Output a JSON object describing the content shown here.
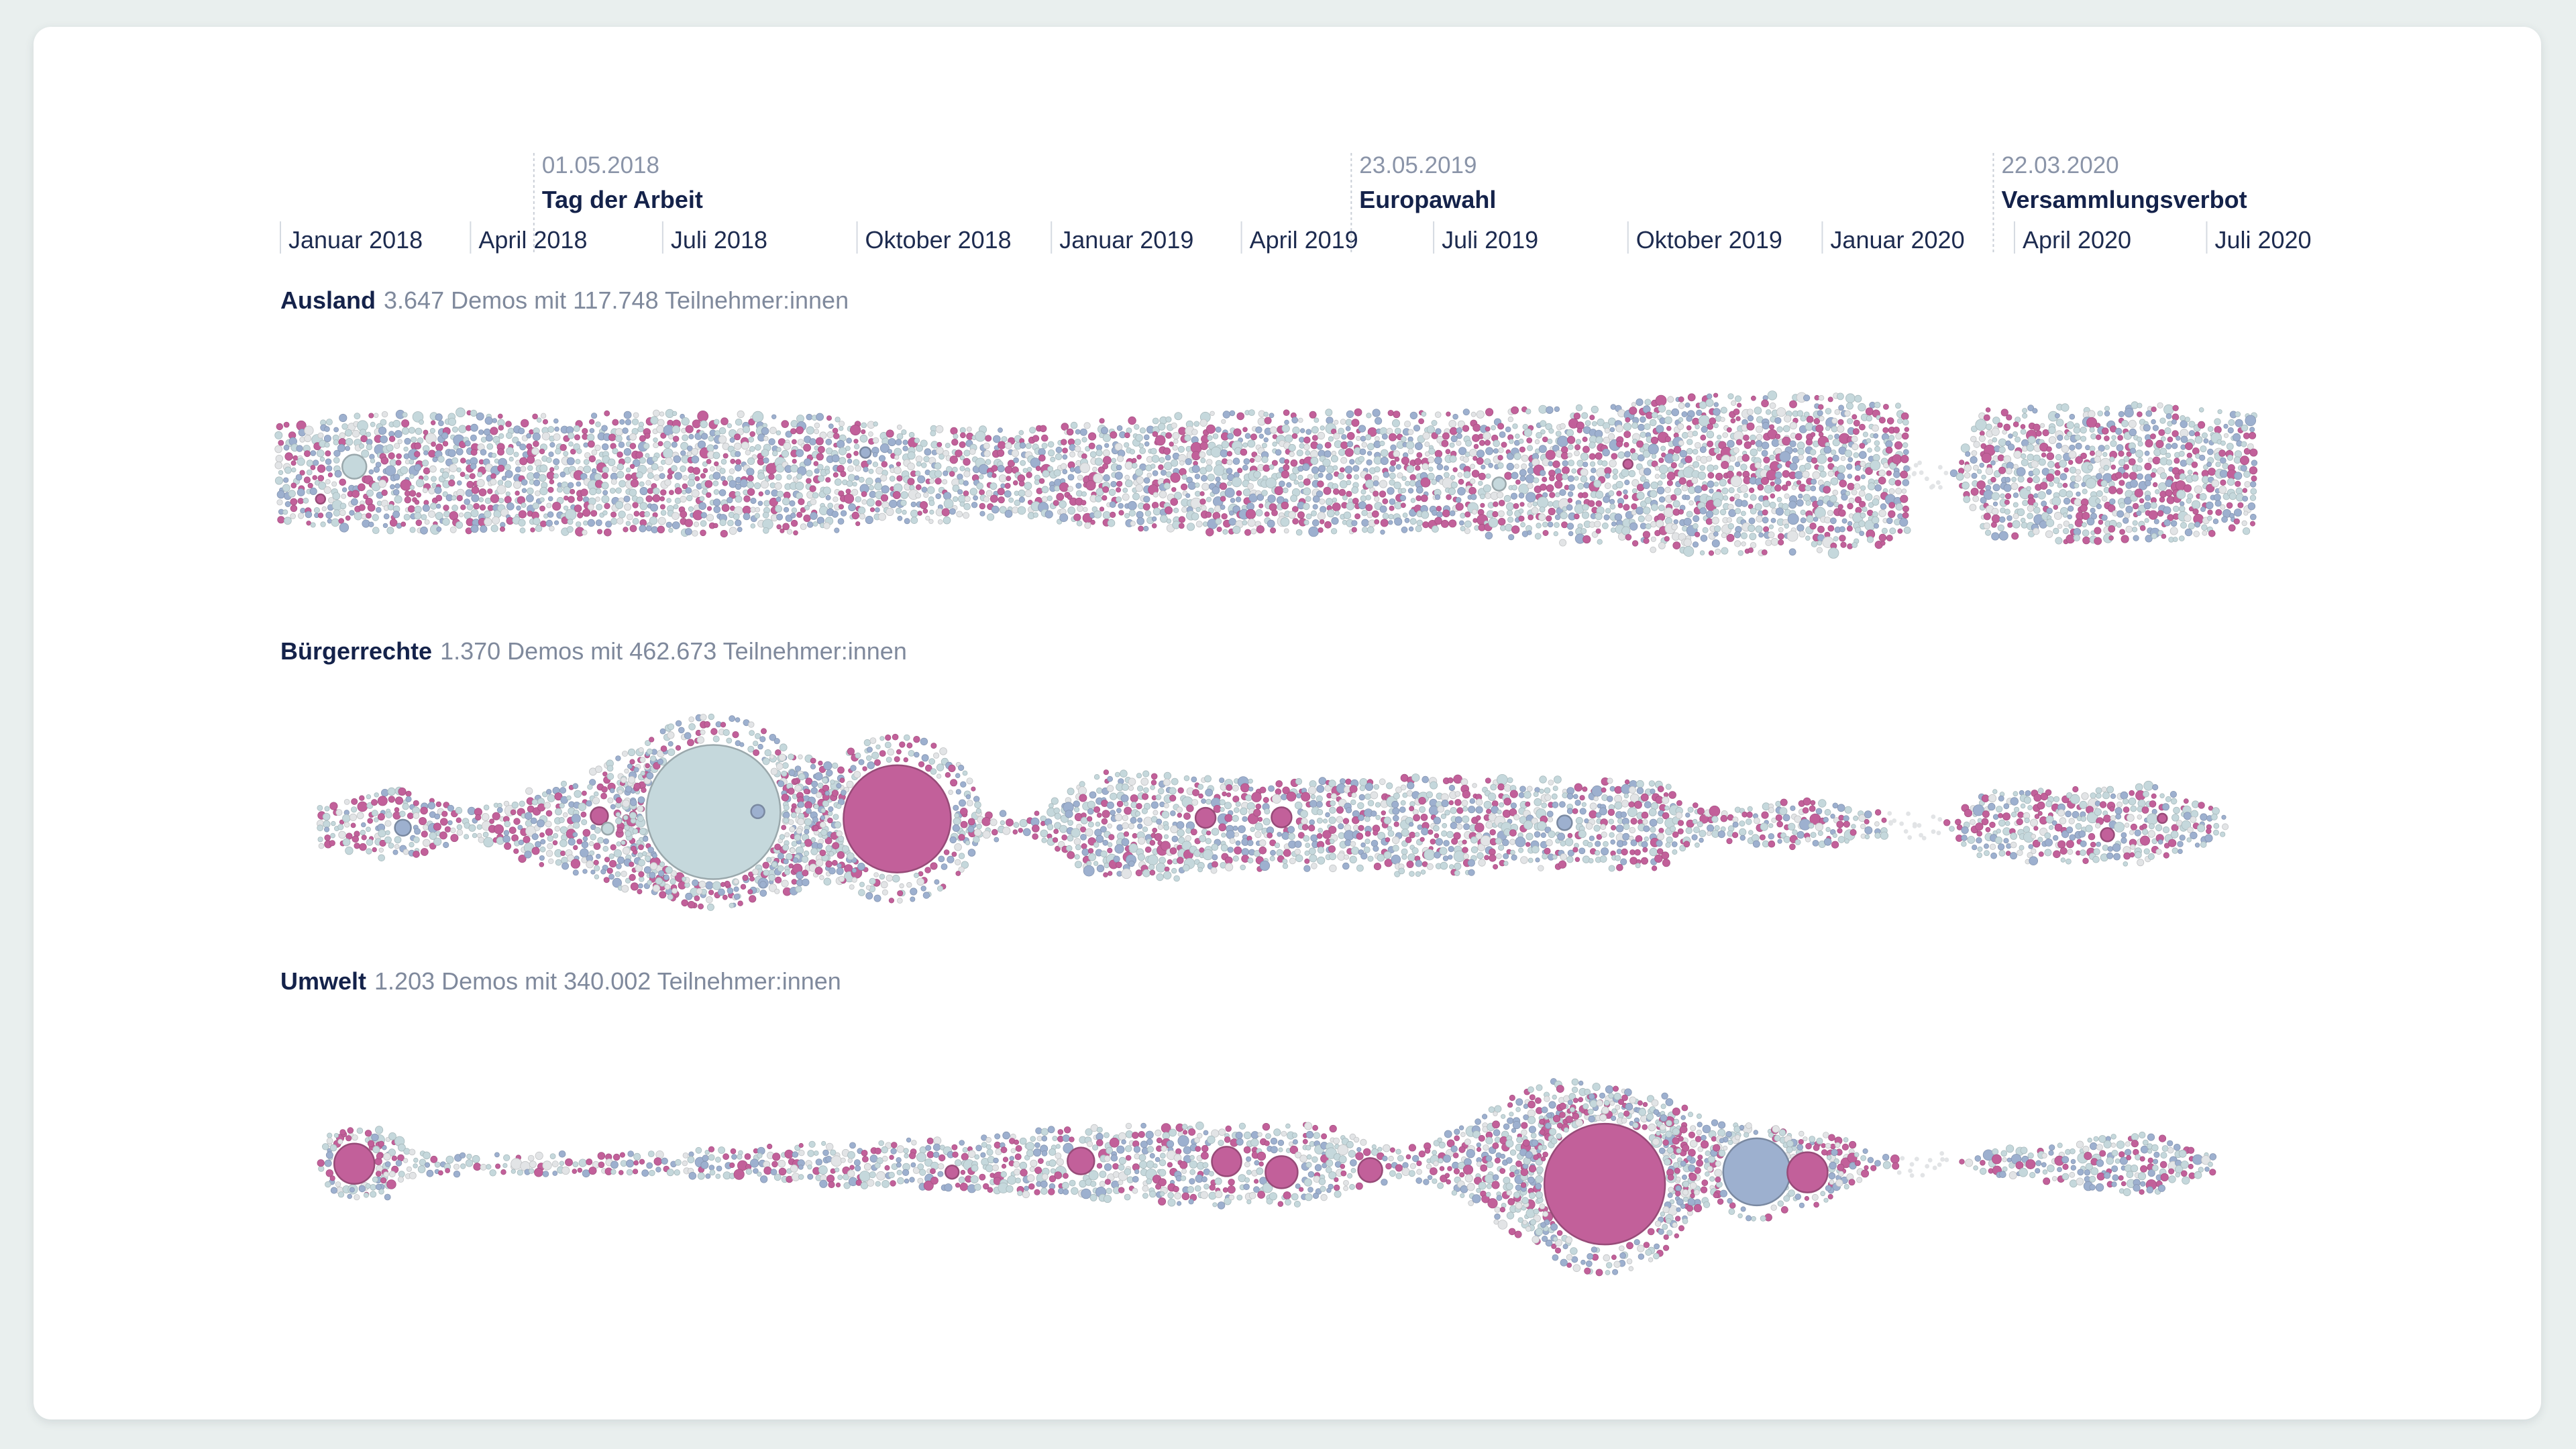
{
  "colors": {
    "magenta": "#c2609a",
    "steel_blue": "#9db0cf",
    "pale_teal": "#c5d8dc",
    "light_gray": "#e2e4e6",
    "label_dark": "#14224a",
    "label_muted": "#8a94a8",
    "background": "#e9efee",
    "card": "#ffffff"
  },
  "chart_data": {
    "type": "scatter",
    "subtype": "beeswarm",
    "x_axis": {
      "type": "date",
      "range": [
        "2018-01-01",
        "2020-09-30"
      ],
      "ticks": [
        {
          "date": "2018-01-01",
          "label": "Januar 2018"
        },
        {
          "date": "2018-04-01",
          "label": "April 2018"
        },
        {
          "date": "2018-07-01",
          "label": "Juli 2018"
        },
        {
          "date": "2018-10-01",
          "label": "Oktober 2018"
        },
        {
          "date": "2019-01-01",
          "label": "Januar 2019"
        },
        {
          "date": "2019-04-01",
          "label": "April 2019"
        },
        {
          "date": "2019-07-01",
          "label": "Juli 2019"
        },
        {
          "date": "2019-10-01",
          "label": "Oktober 2019"
        },
        {
          "date": "2020-01-01",
          "label": "Januar 2020"
        },
        {
          "date": "2020-04-01",
          "label": "April 2020"
        },
        {
          "date": "2020-07-01",
          "label": "Juli 2020"
        }
      ]
    },
    "events": [
      {
        "date": "2018-05-01",
        "date_label": "01.05.2018",
        "name": "Tag der Arbeit"
      },
      {
        "date": "2019-05-23",
        "date_label": "23.05.2019",
        "name": "Europawahl"
      },
      {
        "date": "2020-03-22",
        "date_label": "22.03.2020",
        "name": "Versammlungsverbot"
      }
    ],
    "series": [
      {
        "name": "Ausland",
        "stats": "3.647 Demos mit 117.748 Teilnehmer:innen",
        "gap": [
          "2020-02-10",
          "2020-03-01"
        ],
        "density": [
          [
            "2018-01-01",
            0.5
          ],
          [
            "2018-02-15",
            0.6
          ],
          [
            "2018-04-01",
            0.62
          ],
          [
            "2018-06-15",
            0.62
          ],
          [
            "2018-09-01",
            0.6
          ],
          [
            "2018-10-15",
            0.5
          ],
          [
            "2018-12-15",
            0.45
          ],
          [
            "2019-02-01",
            0.55
          ],
          [
            "2019-04-01",
            0.62
          ],
          [
            "2019-07-01",
            0.62
          ],
          [
            "2019-09-15",
            0.68
          ],
          [
            "2019-11-01",
            0.8
          ],
          [
            "2020-01-01",
            0.8
          ],
          [
            "2020-02-10",
            0.7
          ],
          [
            "2020-03-01",
            0.0
          ],
          [
            "2020-03-20",
            0.66
          ],
          [
            "2020-06-01",
            0.7
          ],
          [
            "2020-07-25",
            0.62
          ]
        ],
        "highlights": [
          {
            "date": "2018-02-05",
            "size": 18,
            "color": "pale_teal"
          },
          {
            "date": "2018-01-20",
            "size": 7,
            "color": "magenta"
          },
          {
            "date": "2018-10-05",
            "size": 8,
            "color": "steel_blue"
          },
          {
            "date": "2019-08-01",
            "size": 10,
            "color": "pale_teal"
          },
          {
            "date": "2019-10-01",
            "size": 7,
            "color": "magenta"
          }
        ]
      },
      {
        "name": "Bürgerrechte",
        "stats": "1.370 Demos mit 462.673 Teilnehmer:innen",
        "gap": [
          "2020-02-01",
          "2020-02-25"
        ],
        "density": [
          [
            "2018-01-20",
            0.2
          ],
          [
            "2018-03-01",
            0.35
          ],
          [
            "2018-04-01",
            0.15
          ],
          [
            "2018-05-15",
            0.45
          ],
          [
            "2018-06-20",
            0.75
          ],
          [
            "2018-09-01",
            0.7
          ],
          [
            "2018-11-01",
            0.25
          ],
          [
            "2018-12-15",
            0.1
          ],
          [
            "2019-02-01",
            0.55
          ],
          [
            "2019-04-15",
            0.45
          ],
          [
            "2019-07-01",
            0.48
          ],
          [
            "2019-10-15",
            0.45
          ],
          [
            "2019-11-10",
            0.15
          ],
          [
            "2019-12-20",
            0.25
          ],
          [
            "2020-02-01",
            0.12
          ],
          [
            "2020-02-25",
            0.0
          ],
          [
            "2020-03-20",
            0.35
          ],
          [
            "2020-06-01",
            0.4
          ],
          [
            "2020-07-10",
            0.15
          ]
        ],
        "highlights": [
          {
            "date": "2018-07-25",
            "size": 100,
            "color": "pale_teal"
          },
          {
            "date": "2018-10-20",
            "size": 80,
            "color": "magenta"
          },
          {
            "date": "2018-02-28",
            "size": 12,
            "color": "steel_blue"
          },
          {
            "date": "2018-06-01",
            "size": 13,
            "color": "magenta"
          },
          {
            "date": "2018-06-05",
            "size": 9,
            "color": "pale_teal"
          },
          {
            "date": "2018-08-15",
            "size": 10,
            "color": "steel_blue"
          },
          {
            "date": "2019-03-15",
            "size": 15,
            "color": "magenta"
          },
          {
            "date": "2019-04-20",
            "size": 15,
            "color": "magenta"
          },
          {
            "date": "2019-09-01",
            "size": 11,
            "color": "steel_blue"
          },
          {
            "date": "2020-05-15",
            "size": 10,
            "color": "magenta"
          },
          {
            "date": "2020-06-10",
            "size": 7,
            "color": "magenta"
          }
        ]
      },
      {
        "name": "Umwelt",
        "stats": "1.203 Demos mit 340.002 Teilnehmer:innen",
        "gap": [
          "2020-02-05",
          "2020-03-01"
        ],
        "density": [
          [
            "2018-01-25",
            0.3
          ],
          [
            "2018-02-15",
            0.35
          ],
          [
            "2018-03-15",
            0.08
          ],
          [
            "2018-07-01",
            0.1
          ],
          [
            "2018-08-01",
            0.15
          ],
          [
            "2018-09-15",
            0.2
          ],
          [
            "2018-11-15",
            0.25
          ],
          [
            "2019-01-01",
            0.35
          ],
          [
            "2019-03-01",
            0.4
          ],
          [
            "2019-05-01",
            0.4
          ],
          [
            "2019-06-15",
            0.15
          ],
          [
            "2019-09-01",
            0.85
          ],
          [
            "2019-10-15",
            0.7
          ],
          [
            "2019-11-15",
            0.4
          ],
          [
            "2020-01-01",
            0.3
          ],
          [
            "2020-02-05",
            0.05
          ],
          [
            "2020-03-01",
            0.0
          ],
          [
            "2020-04-01",
            0.15
          ],
          [
            "2020-06-01",
            0.3
          ],
          [
            "2020-07-05",
            0.1
          ]
        ],
        "highlights": [
          {
            "date": "2019-09-20",
            "size": 90,
            "color": "magenta"
          },
          {
            "date": "2019-12-01",
            "size": 50,
            "color": "steel_blue"
          },
          {
            "date": "2018-02-05",
            "size": 30,
            "color": "magenta"
          },
          {
            "date": "2019-12-25",
            "size": 30,
            "color": "magenta"
          },
          {
            "date": "2019-01-15",
            "size": 20,
            "color": "magenta"
          },
          {
            "date": "2019-03-25",
            "size": 22,
            "color": "magenta"
          },
          {
            "date": "2019-04-20",
            "size": 24,
            "color": "magenta"
          },
          {
            "date": "2019-06-01",
            "size": 18,
            "color": "magenta"
          },
          {
            "date": "2018-11-15",
            "size": 10,
            "color": "magenta"
          }
        ]
      }
    ]
  }
}
